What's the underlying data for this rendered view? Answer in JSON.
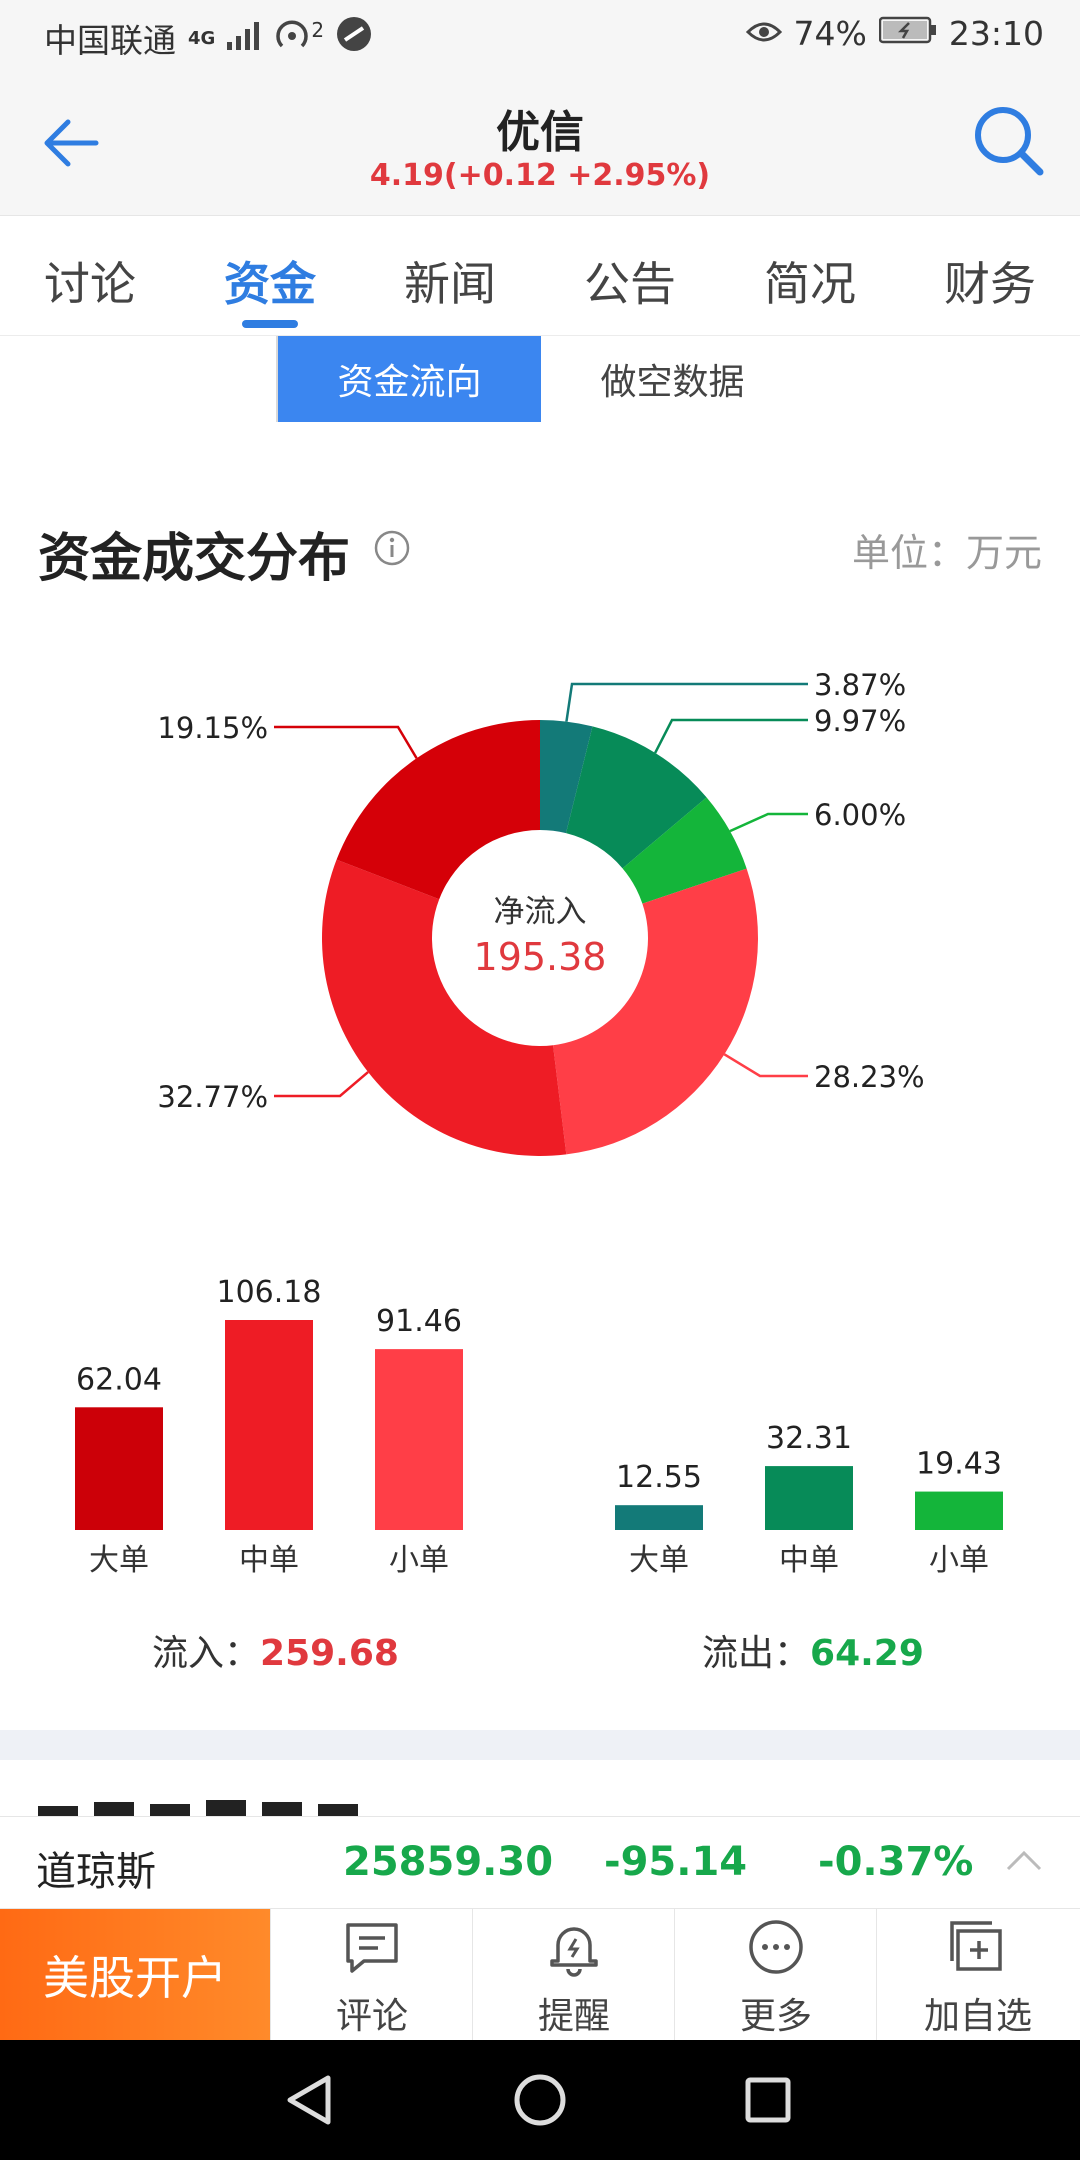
{
  "status_bar": {
    "carrier": "中国联通",
    "network": "4G",
    "hotspot_count": "2",
    "battery": "74%",
    "time": "23:10"
  },
  "header": {
    "title": "优信",
    "quote": "4.19(+0.12 +2.95%)"
  },
  "tabs": [
    "讨论",
    "资金",
    "新闻",
    "公告",
    "简况",
    "财务"
  ],
  "active_tab": 1,
  "segment": {
    "option1": "资金流向",
    "option2": "做空数据",
    "selected": 0
  },
  "section": {
    "title": "资金成交分布",
    "unit": "单位：万元"
  },
  "chart_data": {
    "type": "pie",
    "center_label": "净流入",
    "center_value": "195.38",
    "slices": [
      {
        "label": "3.87%",
        "value": 3.87,
        "color": "#137a78"
      },
      {
        "label": "9.97%",
        "value": 9.97,
        "color": "#078b58"
      },
      {
        "label": "6.00%",
        "value": 6.0,
        "color": "#14b53a"
      },
      {
        "label": "28.23%",
        "value": 28.23,
        "color": "#ff3e47"
      },
      {
        "label": "32.77%",
        "value": 32.77,
        "color": "#ee1c25"
      },
      {
        "label": "19.15%",
        "value": 19.15,
        "color": "#d50008"
      }
    ],
    "bars": {
      "categories": [
        "大单",
        "中单",
        "小单"
      ],
      "inflow": [
        62.04,
        106.18,
        91.46
      ],
      "inflow_colors": [
        "#cc0008",
        "#ee1c25",
        "#ff3e47"
      ],
      "outflow": [
        12.55,
        32.31,
        19.43
      ],
      "outflow_colors": [
        "#137a78",
        "#078b58",
        "#14b53a"
      ]
    }
  },
  "flows": {
    "in_label": "流入：",
    "in_value": "259.68",
    "out_label": "流出：",
    "out_value": "64.29"
  },
  "index_bar": {
    "name": "道琼斯",
    "value": "25859.30",
    "change": "-95.14",
    "percent": "-0.37%"
  },
  "bottom_bar": {
    "open_account": "美股开户",
    "tools": [
      "评论",
      "提醒",
      "更多",
      "加自选"
    ]
  },
  "colors": {
    "accent": "#2f7de1",
    "up": "#e0393e",
    "down": "#17a84b"
  }
}
